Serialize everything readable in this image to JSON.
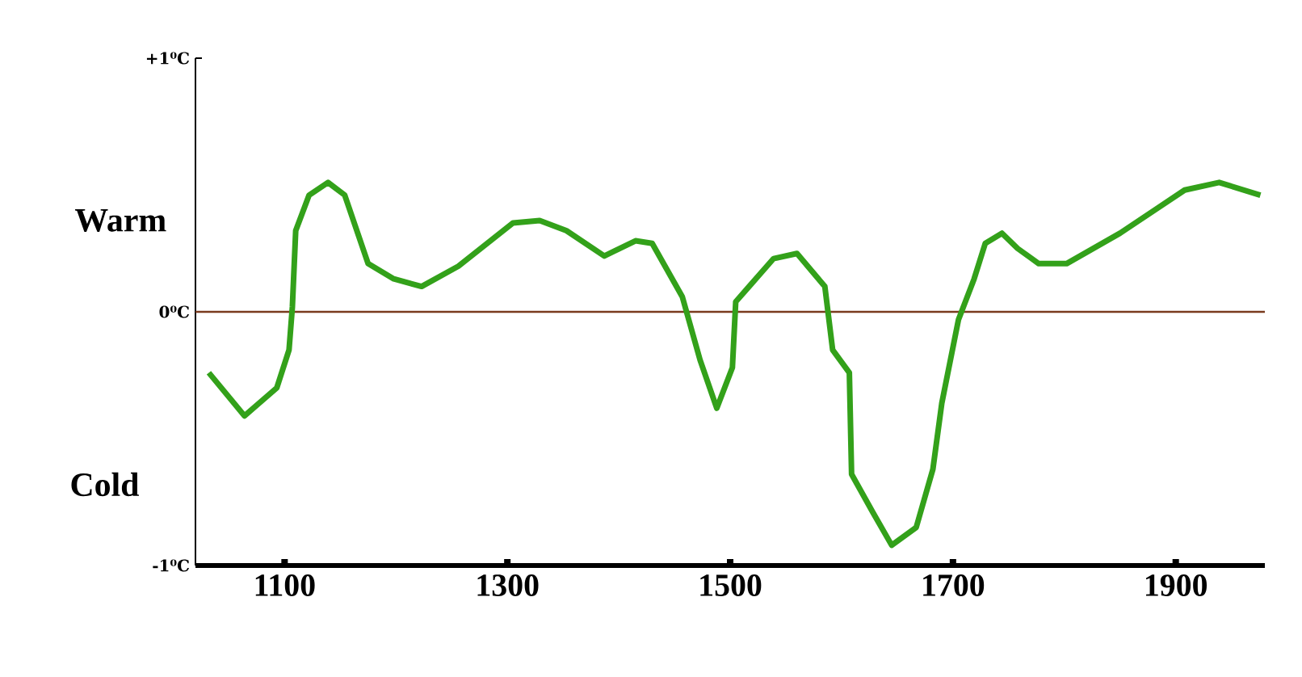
{
  "chart_data": {
    "type": "line",
    "x": [
      1032,
      1064,
      1093,
      1104,
      1107,
      1110,
      1122,
      1139,
      1154,
      1175,
      1198,
      1223,
      1256,
      1305,
      1329,
      1353,
      1387,
      1415,
      1430,
      1457,
      1473,
      1488,
      1502,
      1505,
      1517,
      1539,
      1560,
      1585,
      1592,
      1607,
      1609,
      1628,
      1645,
      1667,
      1682,
      1690,
      1705,
      1719,
      1729,
      1744,
      1758,
      1777,
      1802,
      1850,
      1908,
      1939,
      1976
    ],
    "values": [
      -0.24,
      -0.41,
      -0.3,
      -0.15,
      0.02,
      0.32,
      0.46,
      0.51,
      0.46,
      0.19,
      0.13,
      0.1,
      0.18,
      0.35,
      0.36,
      0.32,
      0.22,
      0.28,
      0.27,
      0.06,
      -0.19,
      -0.38,
      -0.22,
      0.04,
      0.1,
      0.21,
      0.23,
      0.1,
      -0.15,
      -0.24,
      -0.64,
      -0.79,
      -0.92,
      -0.85,
      -0.62,
      -0.36,
      -0.03,
      0.13,
      0.27,
      0.31,
      0.25,
      0.19,
      0.19,
      0.31,
      0.48,
      0.51,
      0.46
    ],
    "color": "#33a11a",
    "xlim": [
      1020,
      1980
    ],
    "ylim": [
      -1,
      1
    ],
    "xticks": [
      1100,
      1300,
      1500,
      1700,
      1900
    ],
    "yticks": [
      {
        "value": -1,
        "label": "-1⁰C"
      },
      {
        "value": 0,
        "label": "0⁰C"
      },
      {
        "value": 1,
        "label": "+1⁰C"
      }
    ],
    "ref_lines": [
      {
        "axis": "y",
        "value": 0,
        "color": "#7a3b1e"
      }
    ],
    "annotations": [
      "Warm",
      "Cold"
    ],
    "marker": "none",
    "line_style": "solid"
  }
}
